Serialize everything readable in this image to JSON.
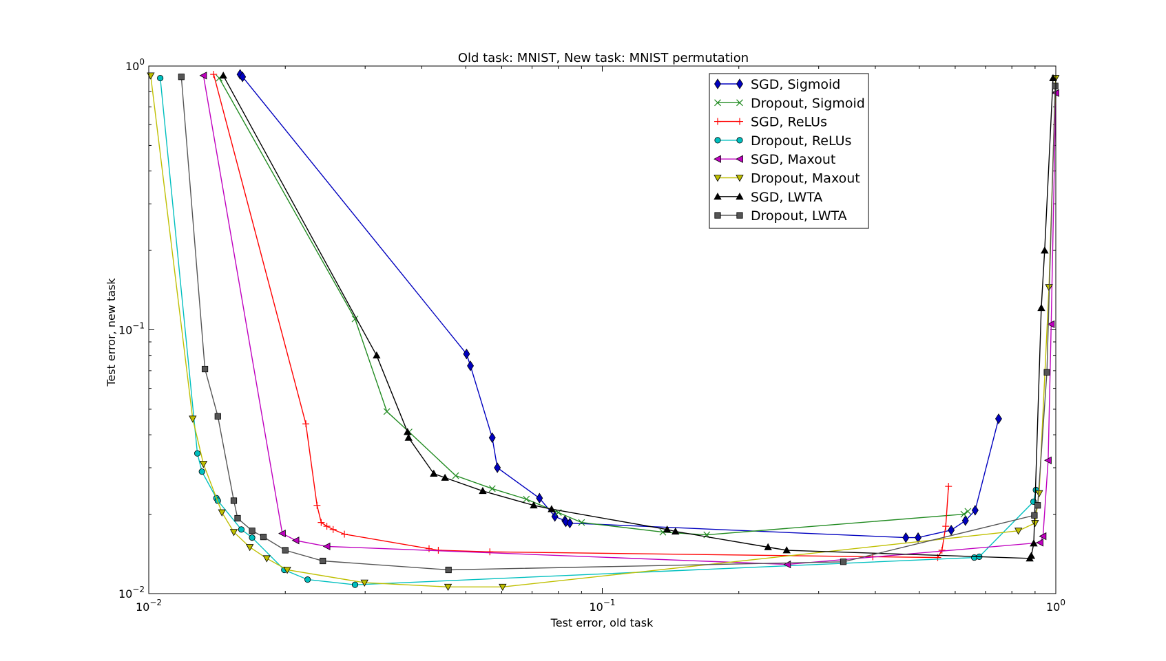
{
  "chart_data": {
    "type": "line",
    "title": "Old task: MNIST, New task: MNIST permutation",
    "xlabel": "Test error, old task",
    "ylabel": "Test error, new task",
    "xscale": "log",
    "yscale": "log",
    "xlim": [
      0.01,
      1.0
    ],
    "ylim": [
      0.01,
      1.0
    ],
    "x_major_ticks": [
      {
        "value": 0.01,
        "base": "10",
        "exp": "−2"
      },
      {
        "value": 0.1,
        "base": "10",
        "exp": "−1"
      },
      {
        "value": 1.0,
        "base": "10",
        "exp": "0"
      }
    ],
    "y_major_ticks": [
      {
        "value": 0.01,
        "base": "10",
        "exp": "−2"
      },
      {
        "value": 0.1,
        "base": "10",
        "exp": "−1"
      },
      {
        "value": 1.0,
        "base": "10",
        "exp": "0"
      }
    ],
    "grid": false,
    "legend_position": "top-right",
    "series": [
      {
        "name": "SGD, Sigmoid",
        "color": "#0000bf",
        "marker": "diamond",
        "x": [
          0.0159,
          0.0161,
          0.0502,
          0.0512,
          0.0572,
          0.0587,
          0.0727,
          0.0786,
          0.0827,
          0.0831,
          0.0848,
          0.467,
          0.497,
          0.588,
          0.632,
          0.664,
          0.748
        ],
        "y": [
          0.93,
          0.91,
          0.081,
          0.073,
          0.039,
          0.03,
          0.023,
          0.0196,
          0.0189,
          0.0187,
          0.0185,
          0.0163,
          0.0163,
          0.0174,
          0.0189,
          0.0207,
          0.046
        ]
      },
      {
        "name": "Dropout, Sigmoid",
        "color": "#228b22",
        "marker": "x",
        "x": [
          0.0143,
          0.0285,
          0.0335,
          0.0375,
          0.0475,
          0.0572,
          0.068,
          0.08,
          0.09,
          0.136,
          0.17,
          0.627,
          0.64
        ],
        "y": [
          0.9,
          0.11,
          0.049,
          0.041,
          0.028,
          0.025,
          0.0228,
          0.0203,
          0.0186,
          0.0171,
          0.0167,
          0.02,
          0.0205
        ]
      },
      {
        "name": "SGD, ReLUs",
        "color": "#ff0000",
        "marker": "plus",
        "x": [
          0.0139,
          0.0222,
          0.0235,
          0.024,
          0.0247,
          0.0255,
          0.027,
          0.0415,
          0.0435,
          0.0565,
          0.395,
          0.549,
          0.561,
          0.572,
          0.58
        ],
        "y": [
          0.93,
          0.044,
          0.0216,
          0.0186,
          0.018,
          0.0175,
          0.0168,
          0.0148,
          0.0146,
          0.0144,
          0.0138,
          0.0137,
          0.0146,
          0.018,
          0.0255
        ]
      },
      {
        "name": "Dropout, ReLUs",
        "color": "#00bfbf",
        "marker": "circle",
        "x": [
          0.0106,
          0.0128,
          0.0131,
          0.0141,
          0.0142,
          0.016,
          0.0169,
          0.0199,
          0.0224,
          0.0285,
          0.661,
          0.678,
          0.893,
          0.904
        ],
        "y": [
          0.9,
          0.034,
          0.029,
          0.023,
          0.0225,
          0.0175,
          0.0163,
          0.0123,
          0.0113,
          0.0108,
          0.0137,
          0.0138,
          0.0223,
          0.0247
        ]
      },
      {
        "name": "SGD, Maxout",
        "color": "#bf00bf",
        "marker": "triangle-left",
        "x": [
          0.0132,
          0.0197,
          0.0211,
          0.0247,
          0.256,
          0.923,
          0.937,
          0.962,
          0.977,
          1.0
        ],
        "y": [
          0.92,
          0.0169,
          0.0159,
          0.0151,
          0.0129,
          0.0156,
          0.0165,
          0.032,
          0.105,
          0.79
        ]
      },
      {
        "name": "Dropout, Maxout",
        "color": "#bfbf00",
        "marker": "triangle-down",
        "x": [
          0.0101,
          0.0125,
          0.0132,
          0.0145,
          0.0154,
          0.0167,
          0.0182,
          0.0202,
          0.0299,
          0.0457,
          0.0603,
          0.827,
          0.9,
          0.919,
          0.966,
          0.999
        ],
        "y": [
          0.92,
          0.046,
          0.031,
          0.0203,
          0.0171,
          0.015,
          0.0136,
          0.0123,
          0.011,
          0.0106,
          0.0106,
          0.0173,
          0.0185,
          0.024,
          0.145,
          0.9
        ]
      },
      {
        "name": "SGD, LWTA",
        "color": "#000000",
        "marker": "triangle-up",
        "x": [
          0.0146,
          0.0318,
          0.0372,
          0.0374,
          0.0425,
          0.045,
          0.0545,
          0.0706,
          0.0773,
          0.139,
          0.145,
          0.232,
          0.255,
          0.876,
          0.883,
          0.894,
          0.929,
          0.945,
          0.986
        ],
        "y": [
          0.92,
          0.08,
          0.041,
          0.039,
          0.0285,
          0.0275,
          0.0245,
          0.0216,
          0.0209,
          0.0175,
          0.0172,
          0.015,
          0.0146,
          0.0136,
          0.0139,
          0.0155,
          0.121,
          0.2,
          0.9
        ]
      },
      {
        "name": "Dropout, LWTA",
        "color": "#555555",
        "marker": "square",
        "x": [
          0.0118,
          0.0133,
          0.0142,
          0.0154,
          0.0157,
          0.0169,
          0.0179,
          0.02,
          0.0242,
          0.0458,
          0.34,
          0.897,
          0.912,
          0.956,
          0.997
        ],
        "y": [
          0.91,
          0.071,
          0.047,
          0.0225,
          0.0193,
          0.0173,
          0.0164,
          0.0146,
          0.0133,
          0.0123,
          0.0132,
          0.0198,
          0.0216,
          0.069,
          0.84
        ]
      }
    ]
  }
}
